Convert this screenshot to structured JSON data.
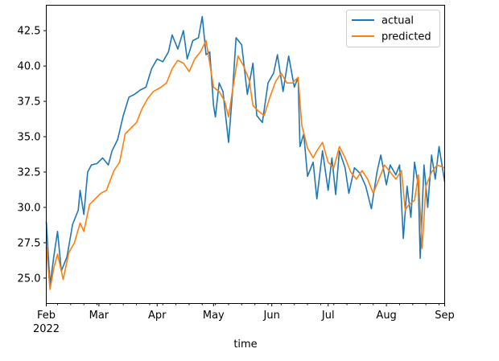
{
  "chart_data": {
    "type": "line",
    "title": "",
    "xlabel": "time",
    "ylabel": "",
    "x_range": [
      "2022-02-01",
      "2022-09-01"
    ],
    "ylim": [
      23.2,
      44.3
    ],
    "y_ticks": [
      "25.0",
      "27.5",
      "30.0",
      "32.5",
      "35.0",
      "37.5",
      "40.0",
      "42.5"
    ],
    "x_ticks": [
      {
        "date": "2022-02-01",
        "label": "Feb"
      },
      {
        "date": "2022-03-01",
        "label": "Mar"
      },
      {
        "date": "2022-04-01",
        "label": "Apr"
      },
      {
        "date": "2022-05-01",
        "label": "May"
      },
      {
        "date": "2022-06-01",
        "label": "Jun"
      },
      {
        "date": "2022-07-01",
        "label": "Jul"
      },
      {
        "date": "2022-08-01",
        "label": "Aug"
      },
      {
        "date": "2022-09-01",
        "label": "Sep"
      }
    ],
    "x_year_label": "2022",
    "legend": "top-right",
    "grid": false,
    "series": [
      {
        "name": "actual",
        "color": "#1f77b4",
        "points": [
          [
            "2022-02-01",
            29.0
          ],
          [
            "2022-02-03",
            24.5
          ],
          [
            "2022-02-05",
            26.5
          ],
          [
            "2022-02-07",
            28.3
          ],
          [
            "2022-02-09",
            25.5
          ],
          [
            "2022-02-12",
            26.5
          ],
          [
            "2022-02-15",
            28.8
          ],
          [
            "2022-02-18",
            29.8
          ],
          [
            "2022-02-19",
            31.2
          ],
          [
            "2022-02-21",
            29.5
          ],
          [
            "2022-02-23",
            32.5
          ],
          [
            "2022-02-25",
            33.0
          ],
          [
            "2022-02-28",
            33.1
          ],
          [
            "2022-03-03",
            33.5
          ],
          [
            "2022-03-06",
            33.0
          ],
          [
            "2022-03-08",
            34.0
          ],
          [
            "2022-03-11",
            34.8
          ],
          [
            "2022-03-14",
            36.5
          ],
          [
            "2022-03-17",
            37.8
          ],
          [
            "2022-03-20",
            38.0
          ],
          [
            "2022-03-23",
            38.3
          ],
          [
            "2022-03-26",
            38.5
          ],
          [
            "2022-03-29",
            39.8
          ],
          [
            "2022-04-01",
            40.5
          ],
          [
            "2022-04-04",
            40.3
          ],
          [
            "2022-04-07",
            41.0
          ],
          [
            "2022-04-09",
            42.2
          ],
          [
            "2022-04-12",
            41.2
          ],
          [
            "2022-04-15",
            42.5
          ],
          [
            "2022-04-17",
            40.5
          ],
          [
            "2022-04-20",
            41.8
          ],
          [
            "2022-04-23",
            42.0
          ],
          [
            "2022-04-25",
            43.5
          ],
          [
            "2022-04-27",
            40.8
          ],
          [
            "2022-04-29",
            41.0
          ],
          [
            "2022-05-01",
            37.2
          ],
          [
            "2022-05-02",
            36.4
          ],
          [
            "2022-05-04",
            38.8
          ],
          [
            "2022-05-06",
            38.2
          ],
          [
            "2022-05-09",
            34.6
          ],
          [
            "2022-05-11",
            38.0
          ],
          [
            "2022-05-13",
            42.0
          ],
          [
            "2022-05-16",
            41.5
          ],
          [
            "2022-05-19",
            38.0
          ],
          [
            "2022-05-22",
            40.2
          ],
          [
            "2022-05-24",
            36.5
          ],
          [
            "2022-05-27",
            36.0
          ],
          [
            "2022-05-30",
            38.8
          ],
          [
            "2022-06-02",
            39.5
          ],
          [
            "2022-06-04",
            40.8
          ],
          [
            "2022-06-07",
            38.2
          ],
          [
            "2022-06-10",
            40.7
          ],
          [
            "2022-06-13",
            38.5
          ],
          [
            "2022-06-15",
            39.2
          ],
          [
            "2022-06-16",
            34.3
          ],
          [
            "2022-06-18",
            35.2
          ],
          [
            "2022-06-20",
            32.2
          ],
          [
            "2022-06-23",
            33.2
          ],
          [
            "2022-06-25",
            30.6
          ],
          [
            "2022-06-28",
            34.0
          ],
          [
            "2022-07-01",
            31.2
          ],
          [
            "2022-07-03",
            33.5
          ],
          [
            "2022-07-05",
            30.9
          ],
          [
            "2022-07-07",
            34.0
          ],
          [
            "2022-07-10",
            32.8
          ],
          [
            "2022-07-12",
            31.0
          ],
          [
            "2022-07-15",
            32.8
          ],
          [
            "2022-07-18",
            32.4
          ],
          [
            "2022-07-21",
            31.5
          ],
          [
            "2022-07-24",
            29.9
          ],
          [
            "2022-07-27",
            32.5
          ],
          [
            "2022-07-29",
            33.7
          ],
          [
            "2022-08-01",
            31.6
          ],
          [
            "2022-08-03",
            33.0
          ],
          [
            "2022-08-06",
            32.3
          ],
          [
            "2022-08-08",
            33.0
          ],
          [
            "2022-08-10",
            27.8
          ],
          [
            "2022-08-12",
            31.5
          ],
          [
            "2022-08-14",
            29.3
          ],
          [
            "2022-08-16",
            33.2
          ],
          [
            "2022-08-18",
            31.5
          ],
          [
            "2022-08-19",
            26.4
          ],
          [
            "2022-08-21",
            33.0
          ],
          [
            "2022-08-23",
            30.0
          ],
          [
            "2022-08-25",
            33.7
          ],
          [
            "2022-08-27",
            32.0
          ],
          [
            "2022-08-29",
            34.3
          ],
          [
            "2022-09-01",
            31.8
          ]
        ]
      },
      {
        "name": "predicted",
        "color": "#ff7f0e",
        "points": [
          [
            "2022-02-01",
            27.2
          ],
          [
            "2022-02-03",
            24.2
          ],
          [
            "2022-02-05",
            25.7
          ],
          [
            "2022-02-07",
            26.7
          ],
          [
            "2022-02-10",
            24.9
          ],
          [
            "2022-02-13",
            26.8
          ],
          [
            "2022-02-16",
            27.5
          ],
          [
            "2022-02-19",
            28.9
          ],
          [
            "2022-02-21",
            28.3
          ],
          [
            "2022-02-24",
            30.2
          ],
          [
            "2022-02-27",
            30.6
          ],
          [
            "2022-03-02",
            31.0
          ],
          [
            "2022-03-05",
            31.2
          ],
          [
            "2022-03-09",
            32.6
          ],
          [
            "2022-03-12",
            33.2
          ],
          [
            "2022-03-15",
            35.2
          ],
          [
            "2022-03-18",
            35.6
          ],
          [
            "2022-03-21",
            36.0
          ],
          [
            "2022-03-24",
            37.0
          ],
          [
            "2022-03-27",
            37.7
          ],
          [
            "2022-03-30",
            38.2
          ],
          [
            "2022-04-03",
            38.5
          ],
          [
            "2022-04-06",
            38.8
          ],
          [
            "2022-04-09",
            39.8
          ],
          [
            "2022-04-12",
            40.4
          ],
          [
            "2022-04-15",
            40.2
          ],
          [
            "2022-04-18",
            39.6
          ],
          [
            "2022-04-21",
            40.5
          ],
          [
            "2022-04-24",
            41.0
          ],
          [
            "2022-04-27",
            41.8
          ],
          [
            "2022-04-29",
            40.2
          ],
          [
            "2022-05-01",
            38.5
          ],
          [
            "2022-05-04",
            38.2
          ],
          [
            "2022-05-07",
            37.5
          ],
          [
            "2022-05-09",
            36.4
          ],
          [
            "2022-05-11",
            38.2
          ],
          [
            "2022-05-14",
            40.7
          ],
          [
            "2022-05-17",
            40.0
          ],
          [
            "2022-05-20",
            39.0
          ],
          [
            "2022-05-22",
            37.2
          ],
          [
            "2022-05-25",
            36.8
          ],
          [
            "2022-05-28",
            36.5
          ],
          [
            "2022-05-31",
            37.8
          ],
          [
            "2022-06-03",
            38.9
          ],
          [
            "2022-06-06",
            39.5
          ],
          [
            "2022-06-09",
            38.8
          ],
          [
            "2022-06-12",
            38.8
          ],
          [
            "2022-06-15",
            39.2
          ],
          [
            "2022-06-17",
            35.8
          ],
          [
            "2022-06-20",
            34.2
          ],
          [
            "2022-06-23",
            33.5
          ],
          [
            "2022-06-25",
            34.0
          ],
          [
            "2022-06-28",
            34.6
          ],
          [
            "2022-07-01",
            33.2
          ],
          [
            "2022-07-04",
            32.8
          ],
          [
            "2022-07-07",
            34.3
          ],
          [
            "2022-07-10",
            33.5
          ],
          [
            "2022-07-13",
            32.5
          ],
          [
            "2022-07-16",
            32.0
          ],
          [
            "2022-07-19",
            32.6
          ],
          [
            "2022-07-22",
            32.0
          ],
          [
            "2022-07-25",
            31.0
          ],
          [
            "2022-07-28",
            32.0
          ],
          [
            "2022-07-31",
            33.0
          ],
          [
            "2022-08-03",
            32.5
          ],
          [
            "2022-08-06",
            32.0
          ],
          [
            "2022-08-09",
            32.6
          ],
          [
            "2022-08-11",
            29.8
          ],
          [
            "2022-08-13",
            30.2
          ],
          [
            "2022-08-16",
            30.5
          ],
          [
            "2022-08-18",
            32.3
          ],
          [
            "2022-08-20",
            27.1
          ],
          [
            "2022-08-22",
            31.5
          ],
          [
            "2022-08-25",
            32.5
          ],
          [
            "2022-08-28",
            33.0
          ],
          [
            "2022-09-01",
            32.8
          ]
        ]
      }
    ]
  }
}
